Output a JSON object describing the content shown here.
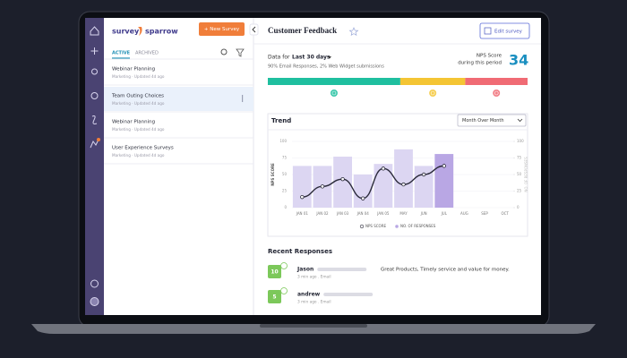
{
  "sidebar": {
    "logo": [
      "survey",
      "sparrow"
    ],
    "new_button": "+ New Survey",
    "tabs": [
      "ACTIVE",
      "ARCHIVED"
    ],
    "surveys": [
      {
        "title": "Webinar Planning",
        "meta": "Marketing · Updated 4d ago"
      },
      {
        "title": "Team Outing Choices",
        "meta": "Marketing · Updated 4d ago"
      },
      {
        "title": "Webinar Planning",
        "meta": "Marketing · Updated 4d ago"
      },
      {
        "title": "User Experience Surveys",
        "meta": "Marketing · Updated 4d ago"
      }
    ]
  },
  "header": {
    "title": "Customer Feedback",
    "edit_button": "Edit survey"
  },
  "nps": {
    "period_prefix": "Data for",
    "period": "Last 30 days",
    "sources": "90% Email Responses, 2% Web Widget submissions",
    "label": [
      "NPS Score",
      "during this period"
    ],
    "score": 34,
    "breakdown": [
      {
        "color": "#1fbf9f",
        "value": 51
      },
      {
        "color": "#f4c534",
        "value": 25
      },
      {
        "color": "#f06b74",
        "value": 24
      }
    ]
  },
  "trend_filter": "Month Over Month",
  "chart_data": {
    "type": "combo",
    "title": "Trend",
    "y_label": "NPS SCORE",
    "y2_label": "NO. OF RESPONSES",
    "categories": [
      "JAN 01",
      "JAN 02",
      "JAN 03",
      "JAN 04",
      "JAN 05",
      "MAY",
      "JUN",
      "JUL",
      "AUG",
      "SEP",
      "OCT"
    ],
    "series": [
      {
        "name": "NPS SCORE",
        "type": "line",
        "color": "#2a2a3a",
        "values": [
          16,
          32,
          43,
          14,
          59,
          35,
          50,
          63,
          null,
          null,
          null
        ]
      },
      {
        "name": "NO. OF RESPONSES",
        "type": "bar",
        "axis": "y2",
        "color": "#dcd6f2",
        "colors": [
          "#dcd6f2",
          "#dcd6f2",
          "#dcd6f2",
          "#dcd6f2",
          "#dcd6f2",
          "#dcd6f2",
          "#dcd6f2",
          "#b9a7e4",
          "#dcd6f2",
          "#dcd6f2",
          "#dcd6f2"
        ],
        "values": [
          63,
          63,
          77,
          50,
          66,
          88,
          63,
          81,
          null,
          null,
          null
        ]
      }
    ],
    "ylim": [
      0,
      100
    ],
    "yticks": [
      0,
      25,
      50,
      75,
      100
    ],
    "y2lim": [
      0,
      100
    ],
    "y2ticks": [
      0,
      25,
      50,
      75,
      100
    ],
    "grid": true
  },
  "responses": {
    "title": "Recent Responses",
    "items": [
      {
        "name": "Jason",
        "meta": "3 min ago . Email",
        "score": 10,
        "comment": "Great Products, Timely service and value for money."
      },
      {
        "name": "andrew",
        "meta": "3 min ago . Email",
        "score": 5
      }
    ]
  }
}
